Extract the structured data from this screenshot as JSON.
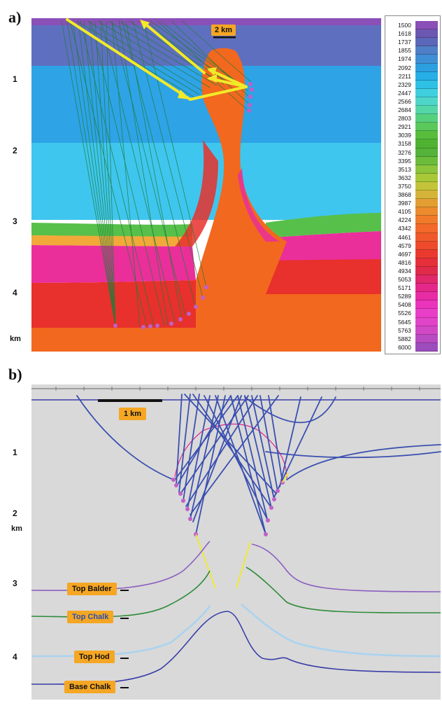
{
  "panel_a": {
    "letter": "a)",
    "scale_label": "2 km",
    "depth_labels": [
      "1",
      "2",
      "3",
      "4",
      "km"
    ],
    "velocity_legend": [
      "1500",
      "1618",
      "1737",
      "1855",
      "1974",
      "2092",
      "2211",
      "2329",
      "2447",
      "2566",
      "2684",
      "2803",
      "2921",
      "3039",
      "3158",
      "3276",
      "3395",
      "3513",
      "3632",
      "3750",
      "3868",
      "3987",
      "4105",
      "4224",
      "4342",
      "4461",
      "4579",
      "4697",
      "4816",
      "4934",
      "5053",
      "5171",
      "5289",
      "5408",
      "5526",
      "5645",
      "5763",
      "5882",
      "6000"
    ],
    "legend_colors": [
      "#8b4fb8",
      "#6c57b3",
      "#5b67b8",
      "#4f7fc6",
      "#3f8fd6",
      "#2c9fe0",
      "#26afe6",
      "#2fc0e6",
      "#3fcfde",
      "#4fd6c8",
      "#55d6a6",
      "#57d07e",
      "#5ac85a",
      "#58bd3d",
      "#4fb233",
      "#55b23a",
      "#6cbc3c",
      "#8cc43c",
      "#a8c838",
      "#c4c43a",
      "#d6b43a",
      "#e39e33",
      "#ec8a2e",
      "#f07a2a",
      "#f2692a",
      "#f05a2a",
      "#ee4a2c",
      "#ea3a30",
      "#e62f3a",
      "#e02a4a",
      "#e0286a",
      "#e4288a",
      "#e82ca6",
      "#ea34bc",
      "#e83ec8",
      "#e044c8",
      "#d048c6",
      "#b84ac2",
      "#9c4cbd"
    ]
  },
  "panel_b": {
    "letter": "b)",
    "scale_label": "1 km",
    "depth_labels": [
      "1",
      "2",
      "km",
      "3",
      "4"
    ],
    "horizons": [
      {
        "name": "Top Balder",
        "color": "#8b5fc0"
      },
      {
        "name": "Top Chalk",
        "color": "#2e8b3a"
      },
      {
        "name": "Top Hod",
        "color": "#a9d3f0"
      },
      {
        "name": "Base Chalk",
        "color": "#3a3fa8"
      }
    ]
  }
}
